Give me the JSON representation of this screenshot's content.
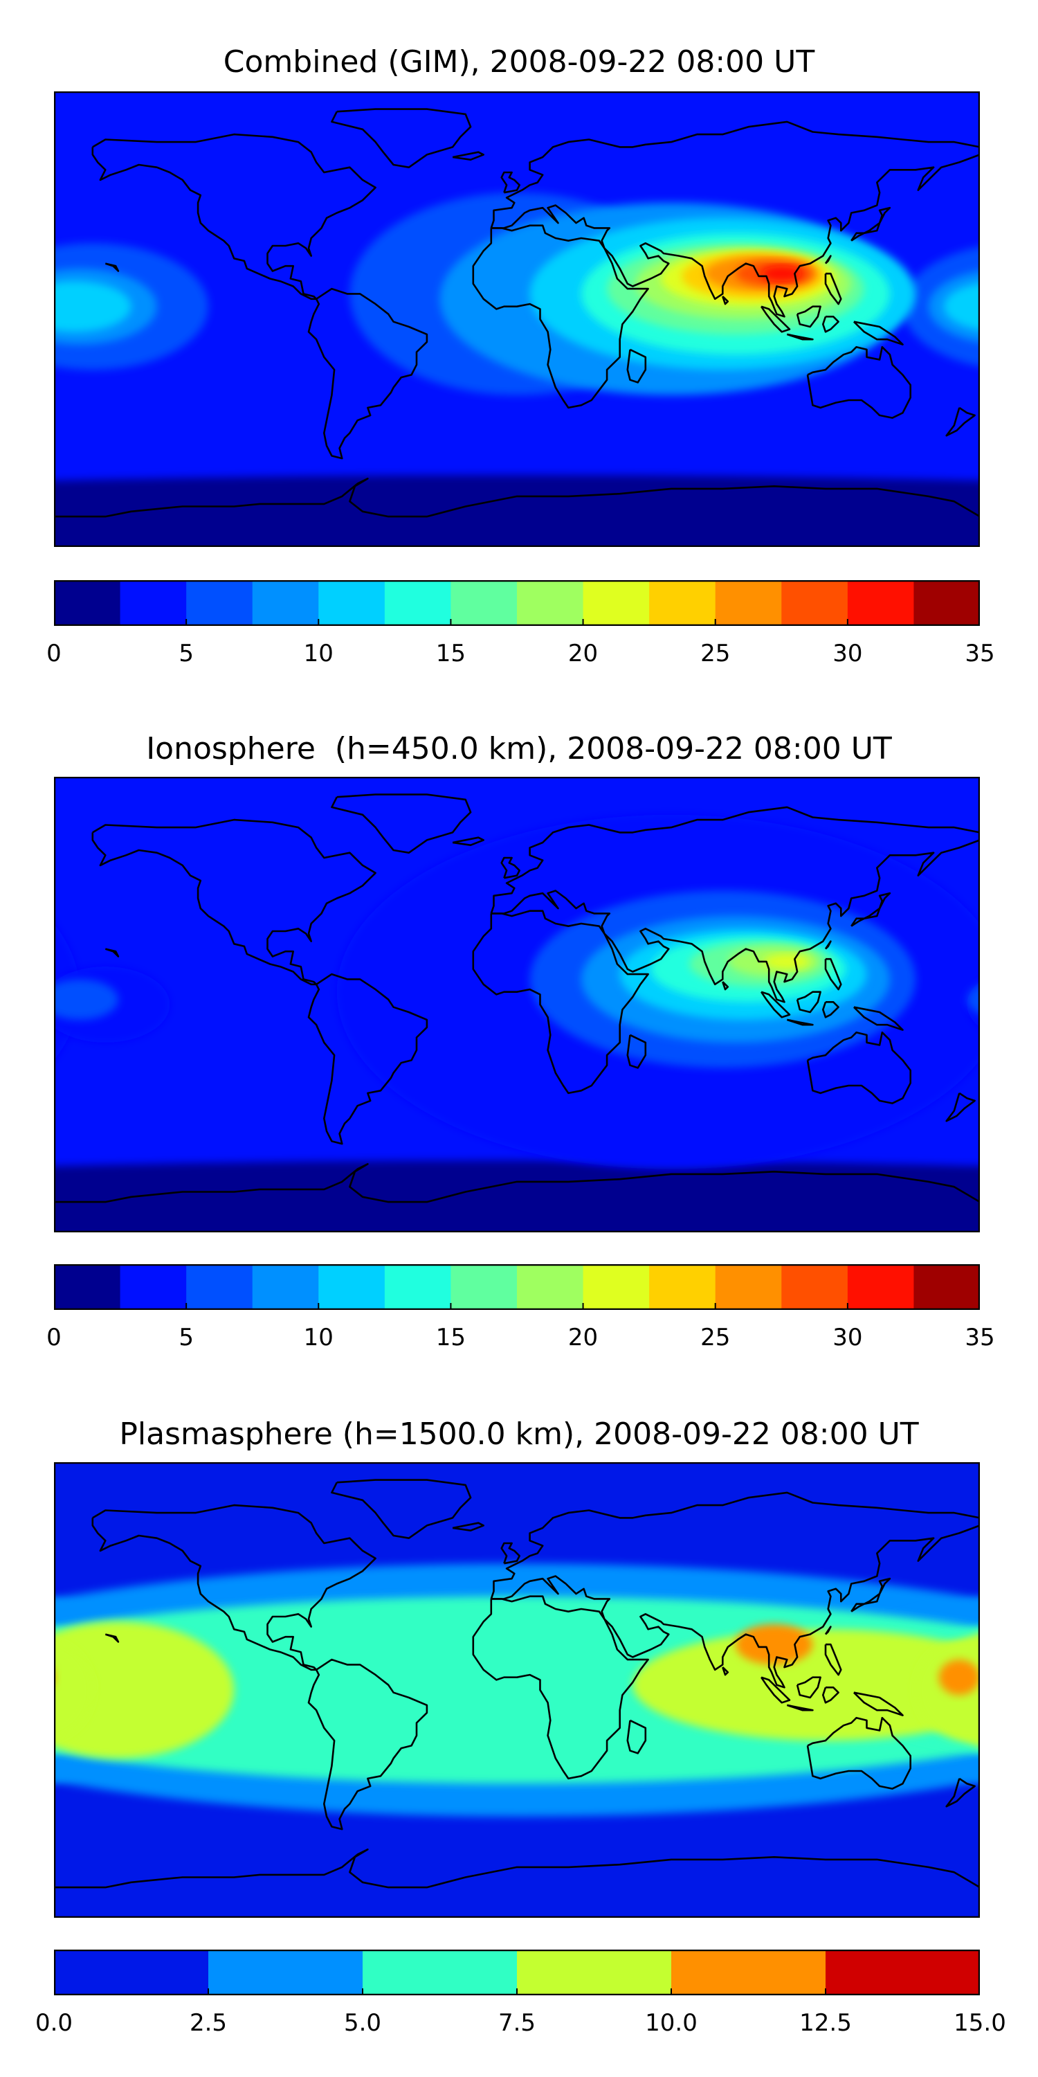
{
  "chart_data": [
    {
      "type": "heatmap",
      "title": "Combined (GIM), 2008-09-22 08:00 UT",
      "xlabel": "",
      "ylabel": "",
      "colorbar": {
        "ticks": [
          "0",
          "5",
          "10",
          "15",
          "20",
          "25",
          "30",
          "35"
        ],
        "range": [
          0,
          35
        ],
        "levels": [
          0,
          2.5,
          5,
          7.5,
          10,
          12.5,
          15,
          17.5,
          20,
          22.5,
          25,
          27.5,
          30,
          32.5,
          35
        ],
        "colors": [
          "#00008f",
          "#0010ff",
          "#0050ff",
          "#0090ff",
          "#00d0ff",
          "#20ffdf",
          "#60ff9f",
          "#9fff60",
          "#dfff20",
          "#ffd000",
          "#ff9000",
          "#ff5000",
          "#ff1000",
          "#9f0000"
        ]
      },
      "features": [
        {
          "level": 5,
          "lon": 0,
          "lat": 10,
          "rx": 65,
          "ry": 40
        },
        {
          "level": 5,
          "lon": -165,
          "lat": 5,
          "rx": 45,
          "ry": 25
        },
        {
          "level": 7.5,
          "lon": 60,
          "lat": 8,
          "rx": 90,
          "ry": 38
        },
        {
          "level": 7.5,
          "lon": -170,
          "lat": 5,
          "rx": 30,
          "ry": 15
        },
        {
          "level": 10,
          "lon": 80,
          "lat": 10,
          "rx": 75,
          "ry": 30
        },
        {
          "level": 10,
          "lon": -172,
          "lat": 5,
          "rx": 22,
          "ry": 10
        },
        {
          "level": 12.5,
          "lon": 85,
          "lat": 10,
          "rx": 60,
          "ry": 24
        },
        {
          "level": 15,
          "lon": 85,
          "lat": 12,
          "rx": 50,
          "ry": 18
        },
        {
          "level": 17.5,
          "lon": 88,
          "lat": 14,
          "rx": 42,
          "ry": 14
        },
        {
          "level": 20,
          "lon": 90,
          "lat": 16,
          "rx": 34,
          "ry": 11
        },
        {
          "level": 22.5,
          "lon": 92,
          "lat": 17,
          "rx": 28,
          "ry": 9
        },
        {
          "level": 25,
          "lon": 95,
          "lat": 18,
          "rx": 22,
          "ry": 7
        },
        {
          "level": 27.5,
          "lon": 100,
          "lat": 18,
          "rx": 15,
          "ry": 5
        },
        {
          "level": 30,
          "lon": 103,
          "lat": 18,
          "rx": 8,
          "ry": 3
        }
      ]
    },
    {
      "type": "heatmap",
      "title": "Ionosphere  (h=450.0 km), 2008-09-22 08:00 UT",
      "xlabel": "",
      "ylabel": "",
      "colorbar": {
        "ticks": [
          "0",
          "5",
          "10",
          "15",
          "20",
          "25",
          "30",
          "35"
        ],
        "range": [
          0,
          35
        ],
        "levels": [
          0,
          2.5,
          5,
          7.5,
          10,
          12.5,
          15,
          17.5,
          20,
          22.5,
          25,
          27.5,
          30,
          32.5,
          35
        ],
        "colors": [
          "#00008f",
          "#0010ff",
          "#0050ff",
          "#0090ff",
          "#00d0ff",
          "#20ffdf",
          "#60ff9f",
          "#9fff60",
          "#dfff20",
          "#ffd000",
          "#ff9000",
          "#ff5000",
          "#ff1000",
          "#9f0000"
        ]
      },
      "features": [
        {
          "level": 2.5,
          "lon": 60,
          "lat": 5,
          "rx": 130,
          "ry": 70
        },
        {
          "level": 2.5,
          "lon": -160,
          "lat": 0,
          "rx": 25,
          "ry": 15
        },
        {
          "level": 5,
          "lon": 80,
          "lat": 10,
          "rx": 75,
          "ry": 35
        },
        {
          "level": 5,
          "lon": -170,
          "lat": 2,
          "rx": 15,
          "ry": 8
        },
        {
          "level": 7.5,
          "lon": 85,
          "lat": 10,
          "rx": 60,
          "ry": 25
        },
        {
          "level": 10,
          "lon": 88,
          "lat": 12,
          "rx": 48,
          "ry": 18
        },
        {
          "level": 12.5,
          "lon": 90,
          "lat": 14,
          "rx": 38,
          "ry": 13
        },
        {
          "level": 15,
          "lon": 95,
          "lat": 16,
          "rx": 28,
          "ry": 9
        },
        {
          "level": 17.5,
          "lon": 100,
          "lat": 17,
          "rx": 18,
          "ry": 6
        },
        {
          "level": 20,
          "lon": 105,
          "lat": 17,
          "rx": 9,
          "ry": 3
        }
      ]
    },
    {
      "type": "heatmap",
      "title": "Plasmasphere (h=1500.0 km), 2008-09-22 08:00 UT",
      "xlabel": "",
      "ylabel": "",
      "colorbar": {
        "ticks": [
          "0.0",
          "2.5",
          "5.0",
          "7.5",
          "10.0",
          "12.5",
          "15.0"
        ],
        "range": [
          0,
          15
        ],
        "levels": [
          0,
          2.5,
          5,
          7.5,
          10,
          12.5,
          15
        ],
        "colors": [
          "#0018e8",
          "#0090ff",
          "#30ffc4",
          "#c4ff30",
          "#ff9000",
          "#d00000"
        ]
      },
      "features": [
        {
          "level": 2.5,
          "lon": 0,
          "lat": 0,
          "rx": 260,
          "ry": 50
        },
        {
          "level": 5,
          "lon": 0,
          "lat": 0,
          "rx": 240,
          "ry": 37
        },
        {
          "level": 7.5,
          "lon": -155,
          "lat": 0,
          "rx": 45,
          "ry": 27
        },
        {
          "level": 7.5,
          "lon": 120,
          "lat": 2,
          "rx": 75,
          "ry": 22
        },
        {
          "level": 7.5,
          "lon": 175,
          "lat": 0,
          "rx": 20,
          "ry": 20
        },
        {
          "level": 10,
          "lon": 100,
          "lat": 18,
          "rx": 15,
          "ry": 8
        },
        {
          "level": 10,
          "lon": 172,
          "lat": 5,
          "rx": 8,
          "ry": 7
        }
      ]
    }
  ]
}
